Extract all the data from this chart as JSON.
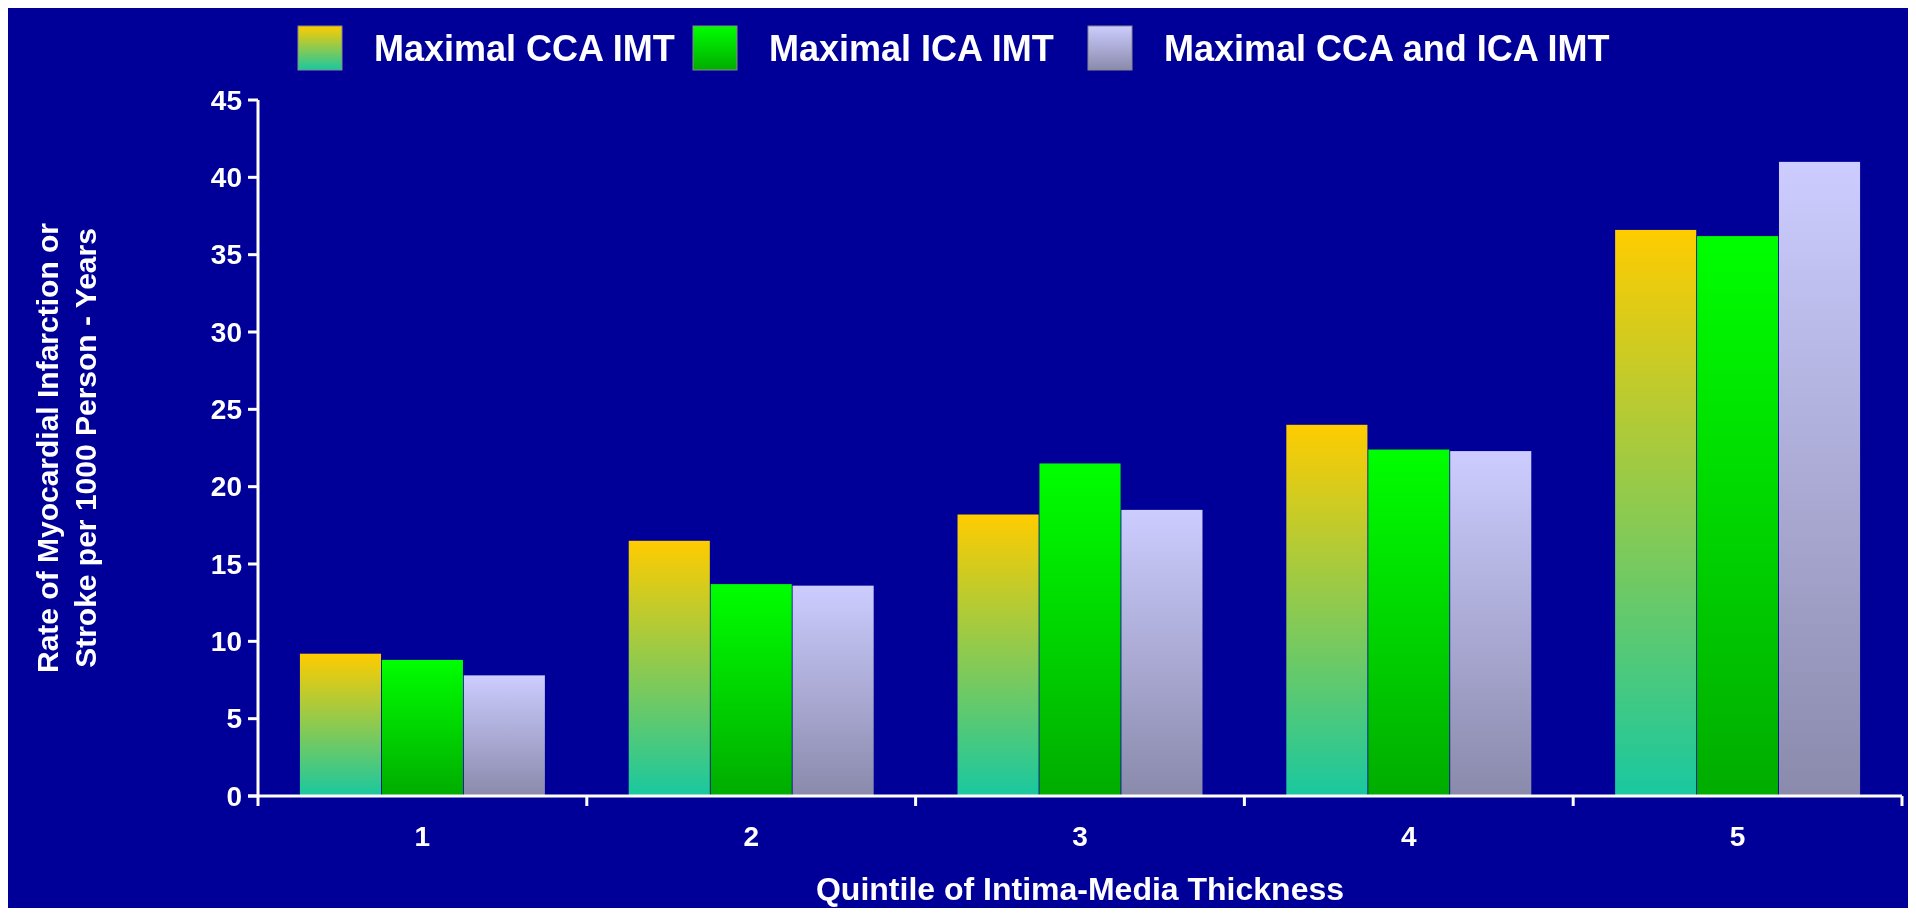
{
  "chart_data": {
    "type": "bar",
    "xlabel": "Quintile of Intima-Media Thickness",
    "ylabel": "Rate of Myocardial Infarction or Stroke per 1000 Person - Years",
    "categories": [
      "1",
      "2",
      "3",
      "4",
      "5"
    ],
    "series": [
      {
        "name": "Maximal CCA IMT",
        "color": "#ffcc00",
        "values": [
          9.2,
          16.5,
          18.2,
          24.0,
          36.6
        ]
      },
      {
        "name": "Maximal ICA IMT",
        "color": "#00ff00",
        "values": [
          8.8,
          13.7,
          21.5,
          22.4,
          36.2
        ]
      },
      {
        "name": "Maximal CCA and ICA IMT",
        "color": "#ccccff",
        "values": [
          7.8,
          13.6,
          18.5,
          22.3,
          41.0
        ]
      }
    ],
    "ylim": [
      0,
      45
    ],
    "yticks": [
      0,
      5,
      10,
      15,
      20,
      25,
      30,
      35,
      40,
      45
    ],
    "grid": false,
    "legend": "top"
  }
}
